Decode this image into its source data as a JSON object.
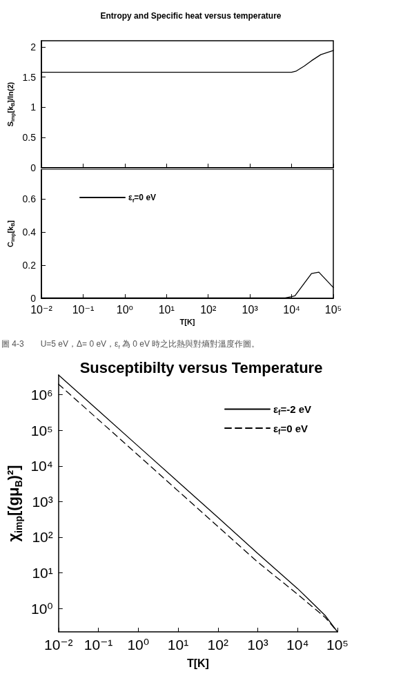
{
  "chart_data": [
    {
      "type": "line",
      "title": "Entropy and Specific heat versus temperature",
      "ylabel": "S$_{imp}$[k$_{B}$]/ln(2)",
      "log": "x",
      "tick_labels": "y",
      "grid": false,
      "legend": false,
      "marker": "none",
      "xlim": [
        0.01,
        100000
      ],
      "xticks": [
        {
          "value": 0.01,
          "label": null
        },
        {
          "value": 0.1,
          "label": null
        },
        {
          "value": 1,
          "label": null
        },
        {
          "value": 10,
          "label": null
        },
        {
          "value": 100,
          "label": null
        },
        {
          "value": 1000,
          "label": null
        },
        {
          "value": 10000,
          "label": null
        },
        {
          "value": 100000,
          "label": null
        }
      ],
      "ylim": [
        0,
        2.1
      ],
      "yticks": [
        0,
        0.5,
        1,
        1.5,
        2
      ],
      "x": [
        0.01,
        0.1,
        1,
        10,
        100,
        1000,
        10000,
        13000,
        20000,
        30000,
        50000,
        100000
      ],
      "series": [
        {
          "color": "#000000",
          "line_style": "solid",
          "values": [
            1.58,
            1.58,
            1.58,
            1.58,
            1.58,
            1.58,
            1.58,
            1.6,
            1.68,
            1.77,
            1.87,
            1.94
          ]
        }
      ]
    },
    {
      "type": "line",
      "xlabel": "T[K]",
      "ylabel": "C$_{imp}$[k$_{B}$]",
      "log": "x",
      "grid": false,
      "legend": "top left",
      "marker": "none",
      "annotations": [
        "圖 4-3　　U=5 eV，Δ= 0 eV，ε$_{f}$ 為 0 eV 時之比熱與對熵對溫度作圖。"
      ],
      "xlim": [
        0.01,
        100000
      ],
      "xticks": [
        {
          "value": 0.01,
          "label": "10⁻²"
        },
        {
          "value": 0.1,
          "label": "10⁻¹"
        },
        {
          "value": 1,
          "label": "10⁰"
        },
        {
          "value": 10,
          "label": "10¹"
        },
        {
          "value": 100,
          "label": "10²"
        },
        {
          "value": 1000,
          "label": "10³"
        },
        {
          "value": 10000,
          "label": "10⁴"
        },
        {
          "value": 100000,
          "label": "10⁵"
        }
      ],
      "ylim": [
        0,
        0.78
      ],
      "yticks": [
        0,
        0.2,
        0.4,
        0.6
      ],
      "x": [
        0.01,
        0.1,
        1,
        10,
        100,
        1000,
        7000,
        10000,
        12000,
        20000,
        30000,
        45000,
        100000
      ],
      "series": [
        {
          "name": "ε$_{f}$=0 eV",
          "color": "#000000",
          "line_style": "solid",
          "values": [
            0.003,
            0.003,
            0.003,
            0.003,
            0.003,
            0.003,
            0.003,
            0.01,
            0.015,
            0.09,
            0.15,
            0.158,
            0.065
          ]
        }
      ]
    },
    {
      "type": "line",
      "title": "Susceptibilty versus Temperature",
      "xlabel": "T[K]",
      "ylabel": "χ$_{imp}$[(gμ$_{B}$)²]",
      "log": "xy",
      "grid": false,
      "legend": "top right",
      "marker": "none",
      "xlim": [
        0.01,
        100000
      ],
      "xticks": [
        {
          "value": 0.01,
          "label": "10⁻²"
        },
        {
          "value": 0.1,
          "label": "10⁻¹"
        },
        {
          "value": 1,
          "label": "10⁰"
        },
        {
          "value": 10,
          "label": "10¹"
        },
        {
          "value": 100,
          "label": "10²"
        },
        {
          "value": 1000,
          "label": "10³"
        },
        {
          "value": 10000,
          "label": "10⁴"
        },
        {
          "value": 100000,
          "label": "10⁵"
        }
      ],
      "ylim": [
        0.22,
        3600000
      ],
      "yticks": [
        {
          "value": 1,
          "label": "10⁰"
        },
        {
          "value": 10,
          "label": "10¹"
        },
        {
          "value": 100,
          "label": "10²"
        },
        {
          "value": 1000,
          "label": "10³"
        },
        {
          "value": 10000,
          "label": "10⁴"
        },
        {
          "value": 100000,
          "label": "10⁵"
        },
        {
          "value": 1000000,
          "label": "10⁶"
        }
      ],
      "x": [
        0.01,
        0.1,
        1,
        10,
        100,
        1000,
        10000,
        20000,
        50000,
        100000
      ],
      "series": [
        {
          "name": "ε$_{f}$=-2 eV",
          "color": "#000000",
          "line_style": "solid",
          "values": [
            3600000,
            360000,
            36000,
            3600,
            360,
            35,
            3.6,
            1.7,
            0.62,
            0.22
          ]
        },
        {
          "name": "ε$_{f}$=0 eV",
          "color": "#000000",
          "line_style": "dashed",
          "values": [
            2000000,
            200000,
            20000,
            2000,
            200,
            20,
            2.5,
            1.3,
            0.55,
            0.22
          ]
        }
      ]
    }
  ]
}
